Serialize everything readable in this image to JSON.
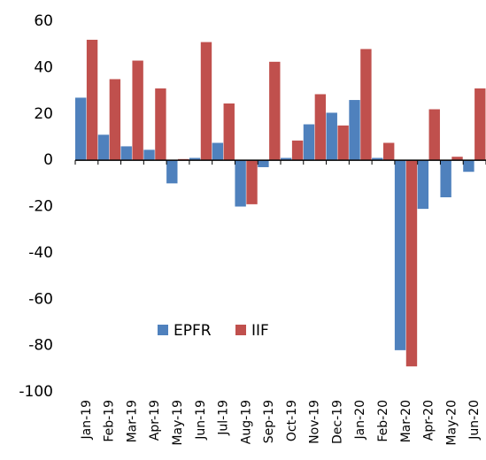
{
  "chart_data": {
    "type": "bar",
    "categories": [
      "Jan-19",
      "Feb-19",
      "Mar-19",
      "Apr-19",
      "May-19",
      "Jun-19",
      "Jul-19",
      "Aug-19",
      "Sep-19",
      "Oct-19",
      "Nov-19",
      "Dec-19",
      "Jan-20",
      "Feb-20",
      "Mar-20",
      "Apr-20",
      "May-20",
      "Jun-20"
    ],
    "series": [
      {
        "name": "EPFR",
        "color": "#4f81bd",
        "values": [
          27,
          11,
          6,
          4.5,
          -10,
          1,
          7.5,
          -20,
          -3,
          1,
          15.5,
          20.5,
          26,
          1,
          -82,
          -21,
          -16,
          -5
        ]
      },
      {
        "name": "IIF",
        "color": "#c0504d",
        "values": [
          52,
          35,
          43,
          31,
          0.5,
          51,
          24.5,
          -19,
          42.5,
          8.5,
          28.5,
          15,
          48,
          7.5,
          -89,
          22,
          1.5,
          31
        ]
      }
    ],
    "ylim": [
      -100,
      60
    ],
    "yticks": [
      -100,
      -80,
      -60,
      -40,
      -20,
      0,
      20,
      40,
      60
    ],
    "grid": false
  }
}
